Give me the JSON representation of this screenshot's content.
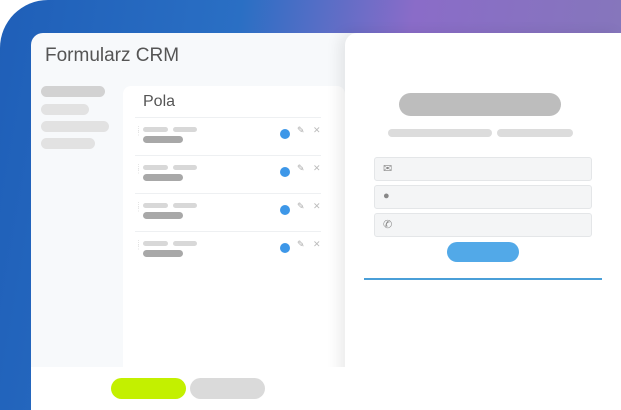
{
  "app": {
    "title": "Formularz CRM"
  },
  "fields_panel": {
    "title": "Pola",
    "rows": 4
  },
  "form": {
    "fields": [
      {
        "icon": "mail-icon",
        "glyph": "✉"
      },
      {
        "icon": "user-icon",
        "glyph": "👤"
      },
      {
        "icon": "phone-icon",
        "glyph": "✆"
      }
    ]
  },
  "colors": {
    "accent": "#3d97e8",
    "submit": "#52a9e8",
    "primary_button": "#c3f000",
    "divider": "#4a9fd8"
  }
}
